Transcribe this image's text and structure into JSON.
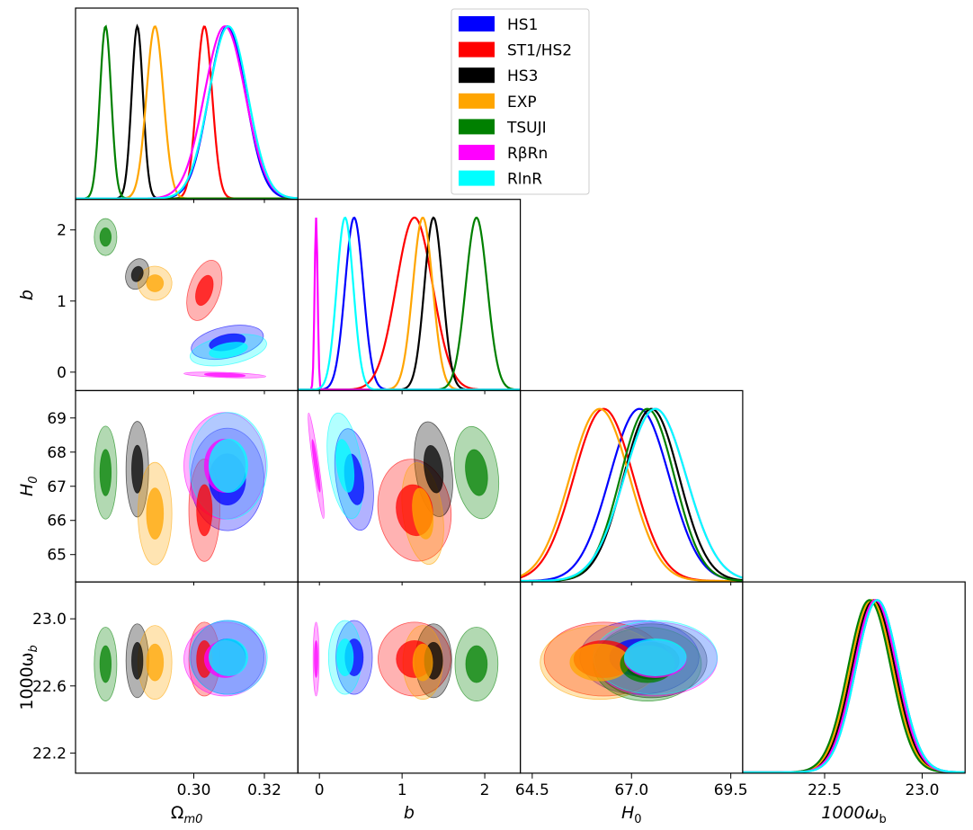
{
  "chart_data": {
    "type": "corner-plot",
    "description_kind": "triangle plot of marginalized 1D and 2D posteriors",
    "parameters": [
      {
        "key": "om",
        "label_main": "Ω",
        "label_sub": "m0",
        "range": [
          0.2665,
          0.3295
        ],
        "ticks": [
          0.3,
          0.32
        ],
        "tick_labels": [
          "0.30",
          "0.32"
        ]
      },
      {
        "key": "b",
        "label_main": "b",
        "label_sub": "",
        "range": [
          -0.26,
          2.43
        ],
        "ticks": [
          0,
          1,
          2
        ],
        "tick_labels": [
          "0",
          "1",
          "2"
        ]
      },
      {
        "key": "H0",
        "label_main": "H",
        "label_sub": "0",
        "range": [
          64.2,
          69.8
        ],
        "ticks": [
          64.5,
          67.0,
          69.5
        ],
        "tick_labels": [
          "64.5",
          "67.0",
          "69.5"
        ],
        "y_ticks": [
          65,
          66,
          67,
          68,
          69
        ],
        "y_tick_labels": [
          "65",
          "66",
          "67",
          "68",
          "69"
        ]
      },
      {
        "key": "wb",
        "label_main": "1000ω",
        "label_sub": "b",
        "range": [
          22.08,
          23.22
        ],
        "ticks": [
          22.5,
          23.0
        ],
        "tick_labels": [
          "22.5",
          "23.0"
        ],
        "y_ticks": [
          22.2,
          22.6,
          23.0
        ],
        "y_tick_labels": [
          "22.2",
          "22.6",
          "23.0"
        ]
      }
    ],
    "series": [
      {
        "name": "HS1",
        "color": "#0000ff",
        "mean": {
          "om": 0.3095,
          "b": 0.42,
          "H0": 67.2,
          "wb": 22.77
        },
        "sd": {
          "om": 0.0052,
          "b": 0.11,
          "H0": 0.75,
          "wb": 0.11
        }
      },
      {
        "name": "ST1/HS2",
        "color": "#ff0000",
        "mean": {
          "om": 0.303,
          "b": 1.15,
          "H0": 66.3,
          "wb": 22.76
        },
        "sd": {
          "om": 0.0022,
          "b": 0.22,
          "H0": 0.75,
          "wb": 0.11
        }
      },
      {
        "name": "HS3",
        "color": "#000000",
        "mean": {
          "om": 0.284,
          "b": 1.38,
          "H0": 67.5,
          "wb": 22.75
        },
        "sd": {
          "om": 0.0016,
          "b": 0.11,
          "H0": 0.7,
          "wb": 0.11
        }
      },
      {
        "name": "EXP",
        "color": "#ffa500",
        "mean": {
          "om": 0.289,
          "b": 1.25,
          "H0": 66.2,
          "wb": 22.74
        },
        "sd": {
          "om": 0.0024,
          "b": 0.12,
          "H0": 0.75,
          "wb": 0.11
        }
      },
      {
        "name": "TSUJI",
        "color": "#008000",
        "mean": {
          "om": 0.275,
          "b": 1.9,
          "H0": 67.4,
          "wb": 22.73
        },
        "sd": {
          "om": 0.0016,
          "b": 0.13,
          "H0": 0.68,
          "wb": 0.11
        }
      },
      {
        "name": "RβRn",
        "color": "#ff00ff",
        "mean": {
          "om": 0.3088,
          "b": -0.04,
          "H0": 67.6,
          "wb": 22.76
        },
        "sd": {
          "om": 0.0058,
          "b": 0.018,
          "H0": 0.78,
          "wb": 0.11
        }
      },
      {
        "name": "RlnR",
        "color": "#00ffff",
        "mean": {
          "om": 0.3098,
          "b": 0.31,
          "H0": 67.6,
          "wb": 22.77
        },
        "sd": {
          "om": 0.0055,
          "b": 0.1,
          "H0": 0.78,
          "wb": 0.11
        }
      }
    ],
    "legend_position": "top-right",
    "grid": false
  }
}
